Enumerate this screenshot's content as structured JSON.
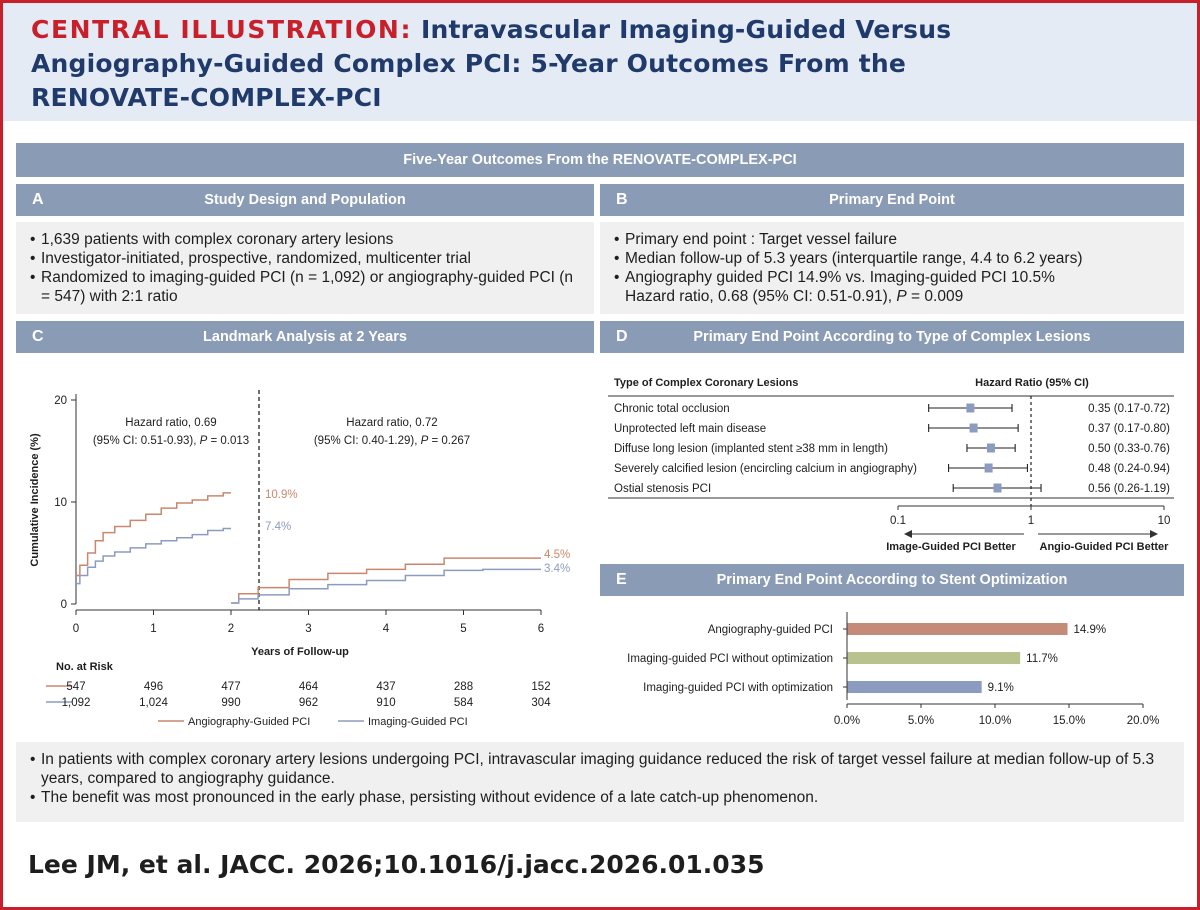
{
  "header": {
    "label": "CENTRAL ILLUSTRATION:",
    "title_line1": "Intravascular Imaging-Guided Versus",
    "title_line2": "Angiography-Guided Complex PCI: 5-Year Outcomes From the",
    "title_line3": "RENOVATE-COMPLEX-PCI"
  },
  "banner": "Five-Year Outcomes From the RENOVATE-COMPLEX-PCI",
  "panel_a": {
    "letter": "A",
    "title": "Study Design and Population",
    "bullets": [
      "1,639 patients with complex coronary artery lesions",
      "Investigator-initiated, prospective, randomized, multicenter trial",
      "Randomized to imaging-guided PCI (n = 1,092) or angiography-guided PCI (n = 547) with 2:1 ratio"
    ]
  },
  "panel_b": {
    "letter": "B",
    "title": "Primary End Point",
    "bullets": [
      "Primary end point : Target vessel failure",
      "Median follow-up of 5.3 years (interquartile range, 4.4 to 6.2 years)",
      "Angiography guided PCI 14.9% vs. Imaging-guided PCI 10.5%"
    ],
    "hr_line_prefix": "Hazard ratio, 0.68 (95% CI: 0.51-0.91), ",
    "p_label": "P",
    "p_value": " = 0.009"
  },
  "panel_c": {
    "letter": "C",
    "title": "Landmark Analysis at 2 Years",
    "ylabel": "Cumulative Incidence (%)",
    "xlabel": "Years of Follow-up",
    "y_ticks": [
      "20",
      "10",
      "0"
    ],
    "x_ticks": [
      "0",
      "1",
      "2",
      "3",
      "4",
      "5",
      "6"
    ],
    "hr_early_1": "Hazard ratio, 0.69",
    "hr_early_2": "(95% CI: 0.51-0.93), ",
    "hr_early_p": "P",
    "hr_early_3": " = 0.013",
    "hr_late_1": "Hazard ratio, 0.72",
    "hr_late_2": "(95% CI: 0.40-1.29), ",
    "hr_late_p": "P",
    "hr_late_3": " = 0.267",
    "end_labels": {
      "angio_early": "10.9%",
      "imaging_early": "7.4%",
      "angio_late": "4.5%",
      "imaging_late": "3.4%"
    },
    "risk_title": "No. at Risk",
    "risk_angio": [
      "547",
      "496",
      "477",
      "464",
      "437",
      "288",
      "152"
    ],
    "risk_imaging": [
      "1,092",
      "1,024",
      "990",
      "962",
      "910",
      "584",
      "304"
    ],
    "legend_angio": "Angiography-Guided PCI",
    "legend_imaging": "Imaging-Guided PCI",
    "colors": {
      "angio": "#c9876e",
      "imaging": "#8c9cc0"
    }
  },
  "panel_d": {
    "letter": "D",
    "title": "Primary End Point According to Type of Complex Lesions",
    "col1": "Type of Complex Coronary Lesions",
    "col2": "Hazard Ratio (95% CI)",
    "rows": [
      {
        "label": "Chronic total occlusion",
        "hr": 0.35,
        "lo": 0.17,
        "hi": 0.72,
        "text": "0.35 (0.17-0.72)"
      },
      {
        "label": "Unprotected left main disease",
        "hr": 0.37,
        "lo": 0.17,
        "hi": 0.8,
        "text": "0.37 (0.17-0.80)"
      },
      {
        "label": "Diffuse long lesion (implanted stent ≥38 mm in length)",
        "hr": 0.5,
        "lo": 0.33,
        "hi": 0.76,
        "text": "0.50 (0.33-0.76)"
      },
      {
        "label": "Severely calcified lesion (encircling calcium in angiography)",
        "hr": 0.48,
        "lo": 0.24,
        "hi": 0.94,
        "text": "0.48 (0.24-0.94)"
      },
      {
        "label": "Ostial stenosis PCI",
        "hr": 0.56,
        "lo": 0.26,
        "hi": 1.19,
        "text": "0.56 (0.26-1.19)"
      }
    ],
    "axis_ticks": [
      "0.1",
      "1",
      "10"
    ],
    "favor_left": "Image-Guided PCI Better",
    "favor_right": "Angio-Guided PCI Better"
  },
  "panel_e": {
    "letter": "E",
    "title": "Primary End Point According to Stent Optimization",
    "bars": [
      {
        "label": "Angiography-guided PCI",
        "value": 14.9,
        "text": "14.9%",
        "color": "#c48b78"
      },
      {
        "label": "Imaging-guided PCI without optimization",
        "value": 11.7,
        "text": "11.7%",
        "color": "#b8c28e"
      },
      {
        "label": "Imaging-guided PCI with optimization",
        "value": 9.1,
        "text": "9.1%",
        "color": "#8c9cc0"
      }
    ],
    "x_ticks": [
      "0.0%",
      "5.0%",
      "10.0%",
      "15.0%",
      "20.0%"
    ]
  },
  "summary": [
    "In patients with complex coronary artery lesions undergoing PCI, intravascular imaging guidance reduced the risk of target vessel failure at median follow-up of 5.3 years, compared to angiography guidance.",
    "The benefit was most pronounced in the early phase, persisting without evidence of a late catch-up phenomenon."
  ],
  "citation": "Lee JM, et al. JACC. 2026;10.1016/j.jacc.2026.01.035",
  "chart_data": [
    {
      "type": "line",
      "title": "Landmark Analysis at 2 Years",
      "xlabel": "Years of Follow-up",
      "ylabel": "Cumulative Incidence (%)",
      "xlim": [
        0,
        6
      ],
      "ylim": [
        0,
        20
      ],
      "series": [
        {
          "name": "Angiography-Guided PCI",
          "segment": "0-2 years",
          "x": [
            0,
            0.1,
            0.2,
            0.3,
            0.4,
            0.6,
            0.8,
            1.0,
            1.2,
            1.4,
            1.6,
            1.8,
            2.0
          ],
          "values": [
            2.8,
            3.8,
            5.0,
            6.2,
            7.0,
            7.6,
            8.2,
            8.8,
            9.4,
            9.9,
            10.2,
            10.6,
            10.9
          ]
        },
        {
          "name": "Imaging-Guided PCI",
          "segment": "0-2 years",
          "x": [
            0,
            0.1,
            0.2,
            0.3,
            0.4,
            0.6,
            0.8,
            1.0,
            1.2,
            1.4,
            1.6,
            1.8,
            2.0
          ],
          "values": [
            2.0,
            2.8,
            3.6,
            4.2,
            4.7,
            5.1,
            5.5,
            5.9,
            6.2,
            6.5,
            6.8,
            7.2,
            7.4
          ]
        },
        {
          "name": "Angiography-Guided PCI",
          "segment": "2-6 years",
          "x": [
            2.0,
            2.2,
            2.5,
            3.0,
            3.5,
            4.0,
            4.5,
            5.0,
            5.5,
            6.0
          ],
          "values": [
            0.1,
            1.0,
            1.6,
            2.4,
            3.0,
            3.4,
            3.9,
            4.5,
            4.5,
            4.5
          ]
        },
        {
          "name": "Imaging-Guided PCI",
          "segment": "2-6 years",
          "x": [
            2.0,
            2.2,
            2.5,
            3.0,
            3.5,
            4.0,
            4.5,
            5.0,
            5.5,
            6.0
          ],
          "values": [
            0.1,
            0.5,
            0.9,
            1.5,
            1.9,
            2.3,
            2.8,
            3.3,
            3.4,
            3.4
          ]
        }
      ]
    },
    {
      "type": "scatter",
      "title": "Primary End Point According to Type of Complex Lesions",
      "xscale": "log",
      "xlim": [
        0.1,
        10
      ],
      "categories": [
        "Chronic total occlusion",
        "Unprotected left main disease",
        "Diffuse long lesion (implanted stent ≥38 mm in length)",
        "Severely calcified lesion (encircling calcium in angiography)",
        "Ostial stenosis PCI"
      ],
      "values": [
        0.35,
        0.37,
        0.5,
        0.48,
        0.56
      ],
      "ci_low": [
        0.17,
        0.17,
        0.33,
        0.24,
        0.26
      ],
      "ci_high": [
        0.72,
        0.8,
        0.76,
        0.94,
        1.19
      ]
    },
    {
      "type": "bar",
      "orientation": "horizontal",
      "title": "Primary End Point According to Stent Optimization",
      "categories": [
        "Angiography-guided PCI",
        "Imaging-guided PCI without optimization",
        "Imaging-guided PCI with optimization"
      ],
      "values": [
        14.9,
        11.7,
        9.1
      ],
      "xlim": [
        0,
        20
      ]
    }
  ]
}
